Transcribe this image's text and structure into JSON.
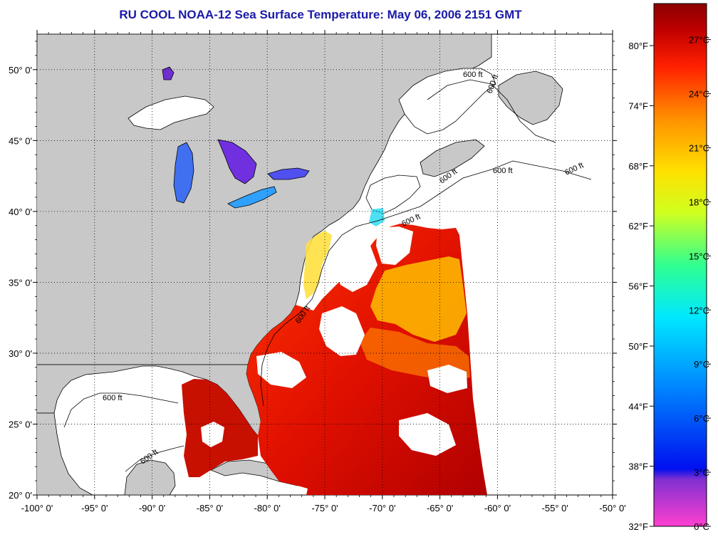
{
  "title": "RU COOL  NOAA-12  Sea Surface Temperature:  May 06, 2006 2151 GMT",
  "map": {
    "lon_range": [
      -100,
      -50
    ],
    "lat_range": [
      20,
      52.5
    ],
    "lon_ticks": [
      "-100° 0'",
      "-95° 0'",
      "-90° 0'",
      "-85° 0'",
      "-80° 0'",
      "-75° 0'",
      "-70° 0'",
      "-65° 0'",
      "-60° 0'",
      "-55° 0'",
      "-50° 0'"
    ],
    "lat_ticks": [
      "20° 0'",
      "25° 0'",
      "30° 0'",
      "35° 0'",
      "40° 0'",
      "45° 0'",
      "50° 0'"
    ],
    "grid": "dotted",
    "land_color": "#c8c8c8",
    "no_data_color": "#ffffff",
    "isobath_labels": [
      "600 ft",
      "600 ft",
      "600 ft",
      "600 ft",
      "600 ft",
      "600 ft",
      "600 ft",
      "600 ft",
      "600 ft"
    ]
  },
  "colorbar": {
    "range_c": [
      0,
      29
    ],
    "fahrenheit_labels": [
      "80°F",
      "74°F",
      "68°F",
      "62°F",
      "56°F",
      "50°F",
      "44°F",
      "38°F",
      "32°F"
    ],
    "celsius_labels": [
      "27°C",
      "24°C",
      "21°C",
      "18°C",
      "15°C",
      "12°C",
      "9°C",
      "6°C",
      "3°C",
      "0°C"
    ],
    "colors": [
      "#ff40d0",
      "#6020c8",
      "#0010f0",
      "#0090ff",
      "#00e8ff",
      "#30ff90",
      "#d0ff20",
      "#ffe000",
      "#ff9000",
      "#ff2000",
      "#c00000",
      "#8a0000"
    ]
  }
}
